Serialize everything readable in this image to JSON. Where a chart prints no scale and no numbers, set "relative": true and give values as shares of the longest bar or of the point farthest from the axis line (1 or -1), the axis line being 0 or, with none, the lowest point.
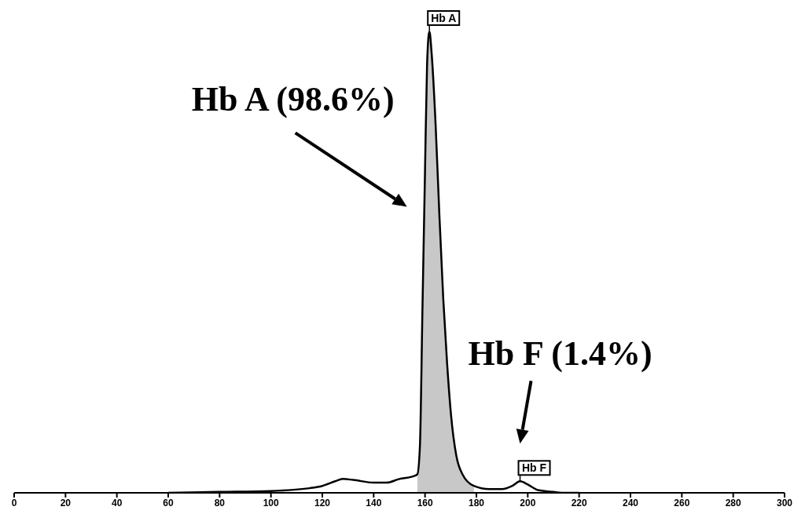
{
  "chart_data": {
    "type": "line",
    "relative": true,
    "xlim": [
      0,
      300
    ],
    "xticks": [
      0,
      20,
      40,
      60,
      80,
      100,
      120,
      140,
      160,
      180,
      200,
      220,
      240,
      260,
      280,
      300
    ],
    "series": [
      {
        "type": "area",
        "color": "#c8c8c8",
        "x": [
          157,
          158,
          159,
          160,
          160.8,
          161.7,
          162.6,
          164.1,
          165.6,
          167.1,
          168.6,
          170.1,
          172.2,
          174.6,
          179
        ],
        "values": [
          0.03,
          0.1,
          0.4,
          0.7,
          0.93,
          1,
          0.95,
          0.8,
          0.6,
          0.42,
          0.28,
          0.17,
          0.08,
          0.04,
          0.015
        ]
      },
      {
        "color": "#000000",
        "x": [
          60,
          80,
          100,
          115,
          120,
          125,
          128,
          132,
          140,
          145,
          150,
          155,
          157,
          158,
          159,
          160,
          160.8,
          161.7,
          162.6,
          164.1,
          165.6,
          167.1,
          168.6,
          170.1,
          172.2,
          174.6,
          179,
          185,
          190,
          194,
          197,
          200,
          204,
          210,
          215,
          220
        ],
        "values": [
          0,
          0.002,
          0.004,
          0.01,
          0.015,
          0.025,
          0.03,
          0.028,
          0.022,
          0.022,
          0.03,
          0.035,
          0.04,
          0.1,
          0.4,
          0.7,
          0.93,
          1,
          0.95,
          0.8,
          0.6,
          0.42,
          0.28,
          0.17,
          0.08,
          0.04,
          0.015,
          0.008,
          0.008,
          0.015,
          0.025,
          0.018,
          0.006,
          0.002,
          0,
          0
        ]
      }
    ],
    "annotations": [
      {
        "text": "Hb A",
        "x": 161.7,
        "y": 1
      },
      {
        "text": "Hb A (98.6%)",
        "x": 159.7,
        "y": 0.62
      },
      {
        "text": "Hb F",
        "x": 197,
        "y": 0.025
      },
      "Hb F (1.4%)"
    ]
  }
}
